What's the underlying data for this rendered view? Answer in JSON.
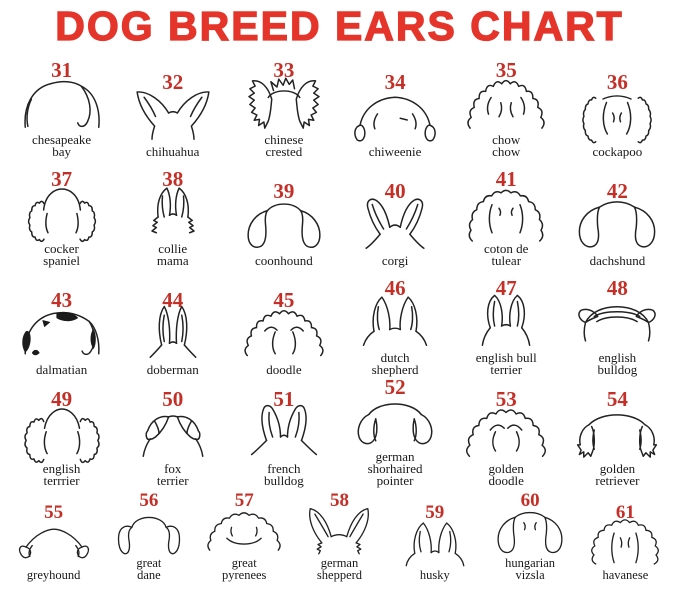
{
  "title": "DOG BREED EARS CHART",
  "colors": {
    "title_red": "#e5352b",
    "number_red": "#c43027",
    "ink": "#222222",
    "background": "#ffffff"
  },
  "rows": [
    {
      "items": [
        {
          "number": "31",
          "label_lines": [
            "chesapeake",
            "bay"
          ],
          "icon": "chesapeake-bay-ears-icon",
          "shape": "dome_flap"
        },
        {
          "number": "32",
          "label_lines": [
            "chihuahua"
          ],
          "icon": "chihuahua-ears-icon",
          "shape": "chihuahua"
        },
        {
          "number": "33",
          "label_lines": [
            "chinese",
            "crested"
          ],
          "icon": "chinese-crested-ears-icon",
          "shape": "crested"
        },
        {
          "number": "34",
          "label_lines": [
            "chiweenie"
          ],
          "icon": "chiweenie-ears-icon",
          "shape": "chiweenie"
        },
        {
          "number": "35",
          "label_lines": [
            "chow",
            "chow"
          ],
          "icon": "chow-chow-ears-icon",
          "shape": "chow"
        },
        {
          "number": "36",
          "label_lines": [
            "cockapoo"
          ],
          "icon": "cockapoo-ears-icon",
          "shape": "cockapoo"
        }
      ]
    },
    {
      "items": [
        {
          "number": "37",
          "label_lines": [
            "cocker",
            "spaniel"
          ],
          "icon": "cocker-spaniel-ears-icon",
          "shape": "cocker"
        },
        {
          "number": "38",
          "label_lines": [
            "collie",
            "mama"
          ],
          "icon": "collie-mama-ears-icon",
          "shape": "collie"
        },
        {
          "number": "39",
          "label_lines": [
            "coonhound"
          ],
          "icon": "coonhound-ears-icon",
          "shape": "hound"
        },
        {
          "number": "40",
          "label_lines": [
            "corgi"
          ],
          "icon": "corgi-ears-icon",
          "shape": "corgi"
        },
        {
          "number": "41",
          "label_lines": [
            "coton de",
            "tulear"
          ],
          "icon": "coton-de-tulear-ears-icon",
          "shape": "coton"
        },
        {
          "number": "42",
          "label_lines": [
            "dachshund"
          ],
          "icon": "dachshund-ears-icon",
          "shape": "dachshund"
        }
      ]
    },
    {
      "items": [
        {
          "number": "43",
          "label_lines": [
            "dalmatian"
          ],
          "icon": "dalmatian-ears-icon",
          "shape": "dalmatian"
        },
        {
          "number": "44",
          "label_lines": [
            "doberman"
          ],
          "icon": "doberman-ears-icon",
          "shape": "doberman"
        },
        {
          "number": "45",
          "label_lines": [
            "doodle"
          ],
          "icon": "doodle-ears-icon",
          "shape": "doodle"
        },
        {
          "number": "46",
          "label_lines": [
            "dutch",
            "shepherd"
          ],
          "icon": "dutch-shepherd-ears-icon",
          "shape": "dutch"
        },
        {
          "number": "47",
          "label_lines": [
            "english bull",
            "terrier"
          ],
          "icon": "english-bull-terrier-ears-icon",
          "shape": "bullterrier"
        },
        {
          "number": "48",
          "label_lines": [
            "english",
            "bulldog"
          ],
          "icon": "english-bulldog-ears-icon",
          "shape": "bulldog"
        }
      ]
    },
    {
      "items": [
        {
          "number": "49",
          "label_lines": [
            "english",
            "terrrier"
          ],
          "icon": "english-terrrier-ears-icon",
          "shape": "engterrier"
        },
        {
          "number": "50",
          "label_lines": [
            "fox",
            "terrier"
          ],
          "icon": "fox-terrier-ears-icon",
          "shape": "foxterrier"
        },
        {
          "number": "51",
          "label_lines": [
            "french",
            "bulldog"
          ],
          "icon": "french-bulldog-ears-icon",
          "shape": "frenchie"
        },
        {
          "number": "52",
          "label_lines": [
            "german",
            "shorhaired",
            "pointer"
          ],
          "icon": "german-shorthaired-pointer-ears-icon",
          "shape": "pointer"
        },
        {
          "number": "53",
          "label_lines": [
            "golden",
            "doodle"
          ],
          "icon": "golden-doodle-ears-icon",
          "shape": "goldendoodle"
        },
        {
          "number": "54",
          "label_lines": [
            "golden",
            "retriever"
          ],
          "icon": "golden-retriever-ears-icon",
          "shape": "retriever"
        }
      ]
    },
    {
      "items": [
        {
          "number": "55",
          "label_lines": [
            "greyhound"
          ],
          "icon": "greyhound-ears-icon",
          "shape": "greyhound"
        },
        {
          "number": "56",
          "label_lines": [
            "great",
            "dane"
          ],
          "icon": "great-dane-ears-icon",
          "shape": "dane"
        },
        {
          "number": "57",
          "label_lines": [
            "great",
            "pyrenees"
          ],
          "icon": "great-pyrenees-ears-icon",
          "shape": "pyrenees"
        },
        {
          "number": "58",
          "label_lines": [
            "german",
            "shepperd"
          ],
          "icon": "german-shepperd-ears-icon",
          "shape": "gsd"
        },
        {
          "number": "59",
          "label_lines": [
            "husky"
          ],
          "icon": "husky-ears-icon",
          "shape": "husky"
        },
        {
          "number": "60",
          "label_lines": [
            "hungarian",
            "vizsla"
          ],
          "icon": "hungarian-vizsla-ears-icon",
          "shape": "vizsla"
        },
        {
          "number": "61",
          "label_lines": [
            "havanese"
          ],
          "icon": "havanese-ears-icon",
          "shape": "havanese"
        }
      ]
    }
  ]
}
